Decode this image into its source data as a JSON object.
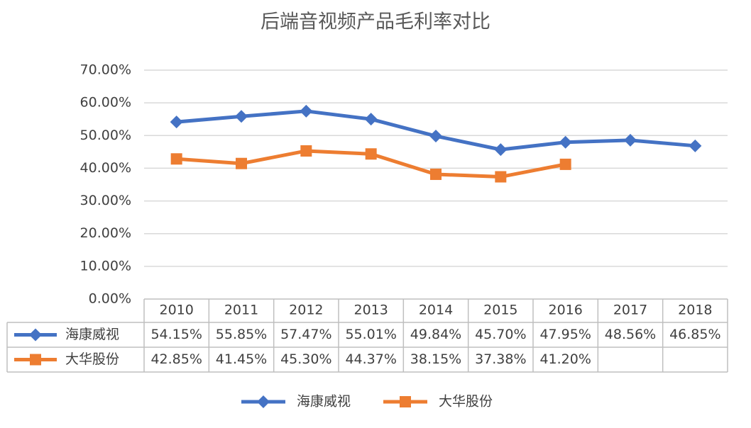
{
  "chart_data": {
    "type": "line",
    "title": "后端音视频产品毛利率对比",
    "categories": [
      "2010",
      "2011",
      "2012",
      "2013",
      "2014",
      "2015",
      "2016",
      "2017",
      "2018"
    ],
    "series": [
      {
        "name": "海康威视",
        "color": "#4472c4",
        "marker": "diamond",
        "values": [
          54.15,
          55.85,
          57.47,
          55.01,
          49.84,
          45.7,
          47.95,
          48.56,
          46.85
        ],
        "value_labels": [
          "54.15%",
          "55.85%",
          "57.47%",
          "55.01%",
          "49.84%",
          "45.70%",
          "47.95%",
          "48.56%",
          "46.85%"
        ]
      },
      {
        "name": "大华股份",
        "color": "#ed7d31",
        "marker": "square",
        "values": [
          42.85,
          41.45,
          45.3,
          44.37,
          38.15,
          37.38,
          41.2,
          null,
          null
        ],
        "value_labels": [
          "42.85%",
          "41.45%",
          "45.30%",
          "44.37%",
          "38.15%",
          "37.38%",
          "41.20%",
          null,
          null
        ]
      }
    ],
    "ylim": [
      0,
      70
    ],
    "yticks": [
      {
        "value": 0,
        "label": "0.00%"
      },
      {
        "value": 10,
        "label": "10.00%"
      },
      {
        "value": 20,
        "label": "20.00%"
      },
      {
        "value": 30,
        "label": "30.00%"
      },
      {
        "value": 40,
        "label": "40.00%"
      },
      {
        "value": 50,
        "label": "50.00%"
      },
      {
        "value": 60,
        "label": "60.00%"
      },
      {
        "value": 70,
        "label": "70.00%"
      }
    ],
    "grid": true,
    "legend": "bottom"
  }
}
